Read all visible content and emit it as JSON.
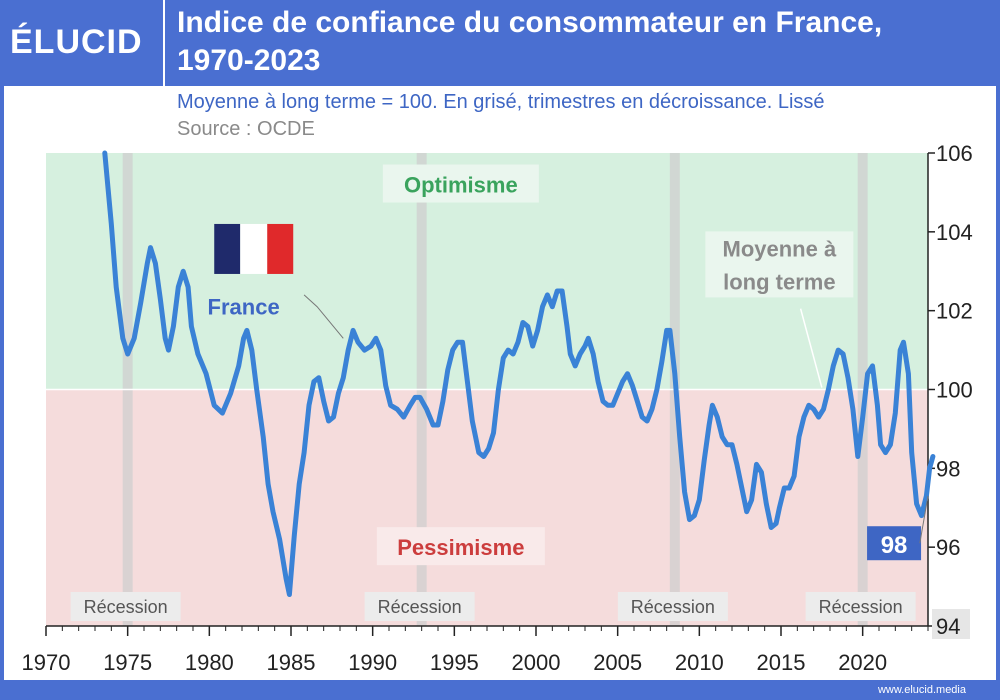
{
  "header": {
    "logo_text": "ÉLUCID",
    "title_line1": "Indice de confiance du consommateur en France,",
    "title_line2": "1970-2023",
    "subtitle": "Moyenne à long terme = 100. En grisé, trimestres en décroissance. Lissé",
    "source": "Source : OCDE"
  },
  "footer": {
    "url": "www.elucid.media"
  },
  "colors": {
    "brand_blue": "#4a6fd1",
    "line_blue": "#3a82d6",
    "optimism_bg": "#d6f0df",
    "pessimism_bg": "#f5dcdc",
    "optimism_text": "#3aa35d",
    "pessimism_text": "#cc3d3d",
    "recession_band": "#cfcfcf"
  },
  "chart_data": {
    "type": "line",
    "title": "Indice de confiance du consommateur en France, 1970-2023",
    "xlabel": "",
    "ylabel": "",
    "xlim": [
      1970,
      2024
    ],
    "ylim": [
      94,
      106
    ],
    "x_ticks": [
      "1970",
      "1975",
      "1980",
      "1985",
      "1990",
      "1995",
      "2000",
      "2005",
      "2010",
      "2015",
      "2020"
    ],
    "y_ticks": [
      "94",
      "96",
      "98",
      "100",
      "102",
      "104",
      "106"
    ],
    "grid": false,
    "reference_line": 100,
    "zones": [
      {
        "label": "Optimisme",
        "from": 100,
        "to": 106
      },
      {
        "label": "Pessimisme",
        "from": 94,
        "to": 100
      }
    ],
    "recessions": [
      {
        "label": "Récession",
        "x": 1975.0
      },
      {
        "label": "Récession",
        "x": 1993.0
      },
      {
        "label": "Récession",
        "x": 2008.5
      },
      {
        "label": "Récession",
        "x": 2020.0
      }
    ],
    "annotations": {
      "series_label": "France",
      "mean_label_line1": "Moyenne à",
      "mean_label_line2": "long terme",
      "last_value_label": "98"
    },
    "series": [
      {
        "name": "France",
        "points": [
          [
            1973.6,
            106.0
          ],
          [
            1974.0,
            104.2
          ],
          [
            1974.3,
            102.6
          ],
          [
            1974.7,
            101.3
          ],
          [
            1975.0,
            100.9
          ],
          [
            1975.4,
            101.3
          ],
          [
            1975.8,
            102.2
          ],
          [
            1976.2,
            103.2
          ],
          [
            1976.4,
            103.6
          ],
          [
            1976.7,
            103.2
          ],
          [
            1977.0,
            102.3
          ],
          [
            1977.3,
            101.3
          ],
          [
            1977.5,
            101.0
          ],
          [
            1977.8,
            101.6
          ],
          [
            1978.1,
            102.6
          ],
          [
            1978.4,
            103.0
          ],
          [
            1978.7,
            102.6
          ],
          [
            1978.9,
            101.6
          ],
          [
            1979.3,
            100.9
          ],
          [
            1979.8,
            100.4
          ],
          [
            1980.3,
            99.6
          ],
          [
            1980.8,
            99.4
          ],
          [
            1981.3,
            99.9
          ],
          [
            1981.8,
            100.6
          ],
          [
            1982.1,
            101.3
          ],
          [
            1982.3,
            101.5
          ],
          [
            1982.6,
            101.0
          ],
          [
            1982.9,
            100.0
          ],
          [
            1983.3,
            98.8
          ],
          [
            1983.6,
            97.6
          ],
          [
            1983.9,
            96.9
          ],
          [
            1984.3,
            96.2
          ],
          [
            1984.7,
            95.2
          ],
          [
            1984.9,
            94.8
          ],
          [
            1985.2,
            96.3
          ],
          [
            1985.5,
            97.6
          ],
          [
            1985.8,
            98.4
          ],
          [
            1986.1,
            99.6
          ],
          [
            1986.4,
            100.2
          ],
          [
            1986.7,
            100.3
          ],
          [
            1987.0,
            99.7
          ],
          [
            1987.3,
            99.2
          ],
          [
            1987.6,
            99.3
          ],
          [
            1987.9,
            99.9
          ],
          [
            1988.2,
            100.3
          ],
          [
            1988.5,
            101.0
          ],
          [
            1988.8,
            101.5
          ],
          [
            1989.1,
            101.2
          ],
          [
            1989.5,
            101.0
          ],
          [
            1989.9,
            101.1
          ],
          [
            1990.2,
            101.3
          ],
          [
            1990.5,
            101.0
          ],
          [
            1990.8,
            100.1
          ],
          [
            1991.1,
            99.6
          ],
          [
            1991.5,
            99.5
          ],
          [
            1991.9,
            99.3
          ],
          [
            1992.3,
            99.6
          ],
          [
            1992.6,
            99.8
          ],
          [
            1992.9,
            99.8
          ],
          [
            1993.3,
            99.5
          ],
          [
            1993.7,
            99.1
          ],
          [
            1994.0,
            99.1
          ],
          [
            1994.3,
            99.7
          ],
          [
            1994.6,
            100.5
          ],
          [
            1994.9,
            101.0
          ],
          [
            1995.2,
            101.2
          ],
          [
            1995.5,
            101.2
          ],
          [
            1995.8,
            100.2
          ],
          [
            1996.1,
            99.2
          ],
          [
            1996.5,
            98.4
          ],
          [
            1996.8,
            98.3
          ],
          [
            1997.1,
            98.5
          ],
          [
            1997.4,
            98.9
          ],
          [
            1997.7,
            100.0
          ],
          [
            1998.0,
            100.8
          ],
          [
            1998.3,
            101.0
          ],
          [
            1998.6,
            100.9
          ],
          [
            1998.9,
            101.2
          ],
          [
            1999.2,
            101.7
          ],
          [
            1999.5,
            101.6
          ],
          [
            1999.8,
            101.1
          ],
          [
            2000.1,
            101.5
          ],
          [
            2000.4,
            102.1
          ],
          [
            2000.7,
            102.4
          ],
          [
            2001.0,
            102.1
          ],
          [
            2001.3,
            102.5
          ],
          [
            2001.6,
            102.5
          ],
          [
            2001.9,
            101.6
          ],
          [
            2002.1,
            100.9
          ],
          [
            2002.4,
            100.6
          ],
          [
            2002.7,
            100.9
          ],
          [
            2003.0,
            101.1
          ],
          [
            2003.2,
            101.3
          ],
          [
            2003.5,
            100.9
          ],
          [
            2003.8,
            100.2
          ],
          [
            2004.1,
            99.7
          ],
          [
            2004.4,
            99.6
          ],
          [
            2004.7,
            99.6
          ],
          [
            2005.0,
            99.9
          ],
          [
            2005.3,
            100.2
          ],
          [
            2005.6,
            100.4
          ],
          [
            2005.9,
            100.1
          ],
          [
            2006.2,
            99.7
          ],
          [
            2006.5,
            99.3
          ],
          [
            2006.8,
            99.2
          ],
          [
            2007.1,
            99.5
          ],
          [
            2007.4,
            100.0
          ],
          [
            2007.7,
            100.7
          ],
          [
            2008.0,
            101.5
          ],
          [
            2008.2,
            101.5
          ],
          [
            2008.5,
            100.4
          ],
          [
            2008.8,
            98.8
          ],
          [
            2009.1,
            97.4
          ],
          [
            2009.4,
            96.7
          ],
          [
            2009.7,
            96.8
          ],
          [
            2010.0,
            97.2
          ],
          [
            2010.3,
            98.2
          ],
          [
            2010.6,
            99.1
          ],
          [
            2010.8,
            99.6
          ],
          [
            2011.1,
            99.3
          ],
          [
            2011.4,
            98.8
          ],
          [
            2011.7,
            98.6
          ],
          [
            2012.0,
            98.6
          ],
          [
            2012.3,
            98.1
          ],
          [
            2012.6,
            97.5
          ],
          [
            2012.9,
            96.9
          ],
          [
            2013.2,
            97.2
          ],
          [
            2013.5,
            98.1
          ],
          [
            2013.8,
            97.9
          ],
          [
            2014.1,
            97.1
          ],
          [
            2014.4,
            96.5
          ],
          [
            2014.7,
            96.6
          ],
          [
            2014.9,
            97.0
          ],
          [
            2015.2,
            97.5
          ],
          [
            2015.5,
            97.5
          ],
          [
            2015.8,
            97.8
          ],
          [
            2016.1,
            98.8
          ],
          [
            2016.4,
            99.3
          ],
          [
            2016.7,
            99.6
          ],
          [
            2017.0,
            99.5
          ],
          [
            2017.3,
            99.3
          ],
          [
            2017.6,
            99.5
          ],
          [
            2017.9,
            100.0
          ],
          [
            2018.2,
            100.6
          ],
          [
            2018.5,
            101.0
          ],
          [
            2018.8,
            100.9
          ],
          [
            2019.1,
            100.3
          ],
          [
            2019.4,
            99.5
          ],
          [
            2019.7,
            98.3
          ],
          [
            2020.0,
            99.3
          ],
          [
            2020.3,
            100.4
          ],
          [
            2020.6,
            100.6
          ],
          [
            2020.9,
            99.6
          ],
          [
            2021.1,
            98.6
          ],
          [
            2021.4,
            98.4
          ],
          [
            2021.7,
            98.6
          ],
          [
            2022.0,
            99.4
          ],
          [
            2022.3,
            101.0
          ],
          [
            2022.5,
            101.2
          ],
          [
            2022.8,
            100.4
          ],
          [
            2023.0,
            98.4
          ],
          [
            2023.3,
            97.1
          ],
          [
            2023.6,
            96.8
          ],
          [
            2023.9,
            97.3
          ],
          [
            2024.1,
            98.0
          ],
          [
            2024.3,
            98.3
          ]
        ]
      }
    ]
  }
}
